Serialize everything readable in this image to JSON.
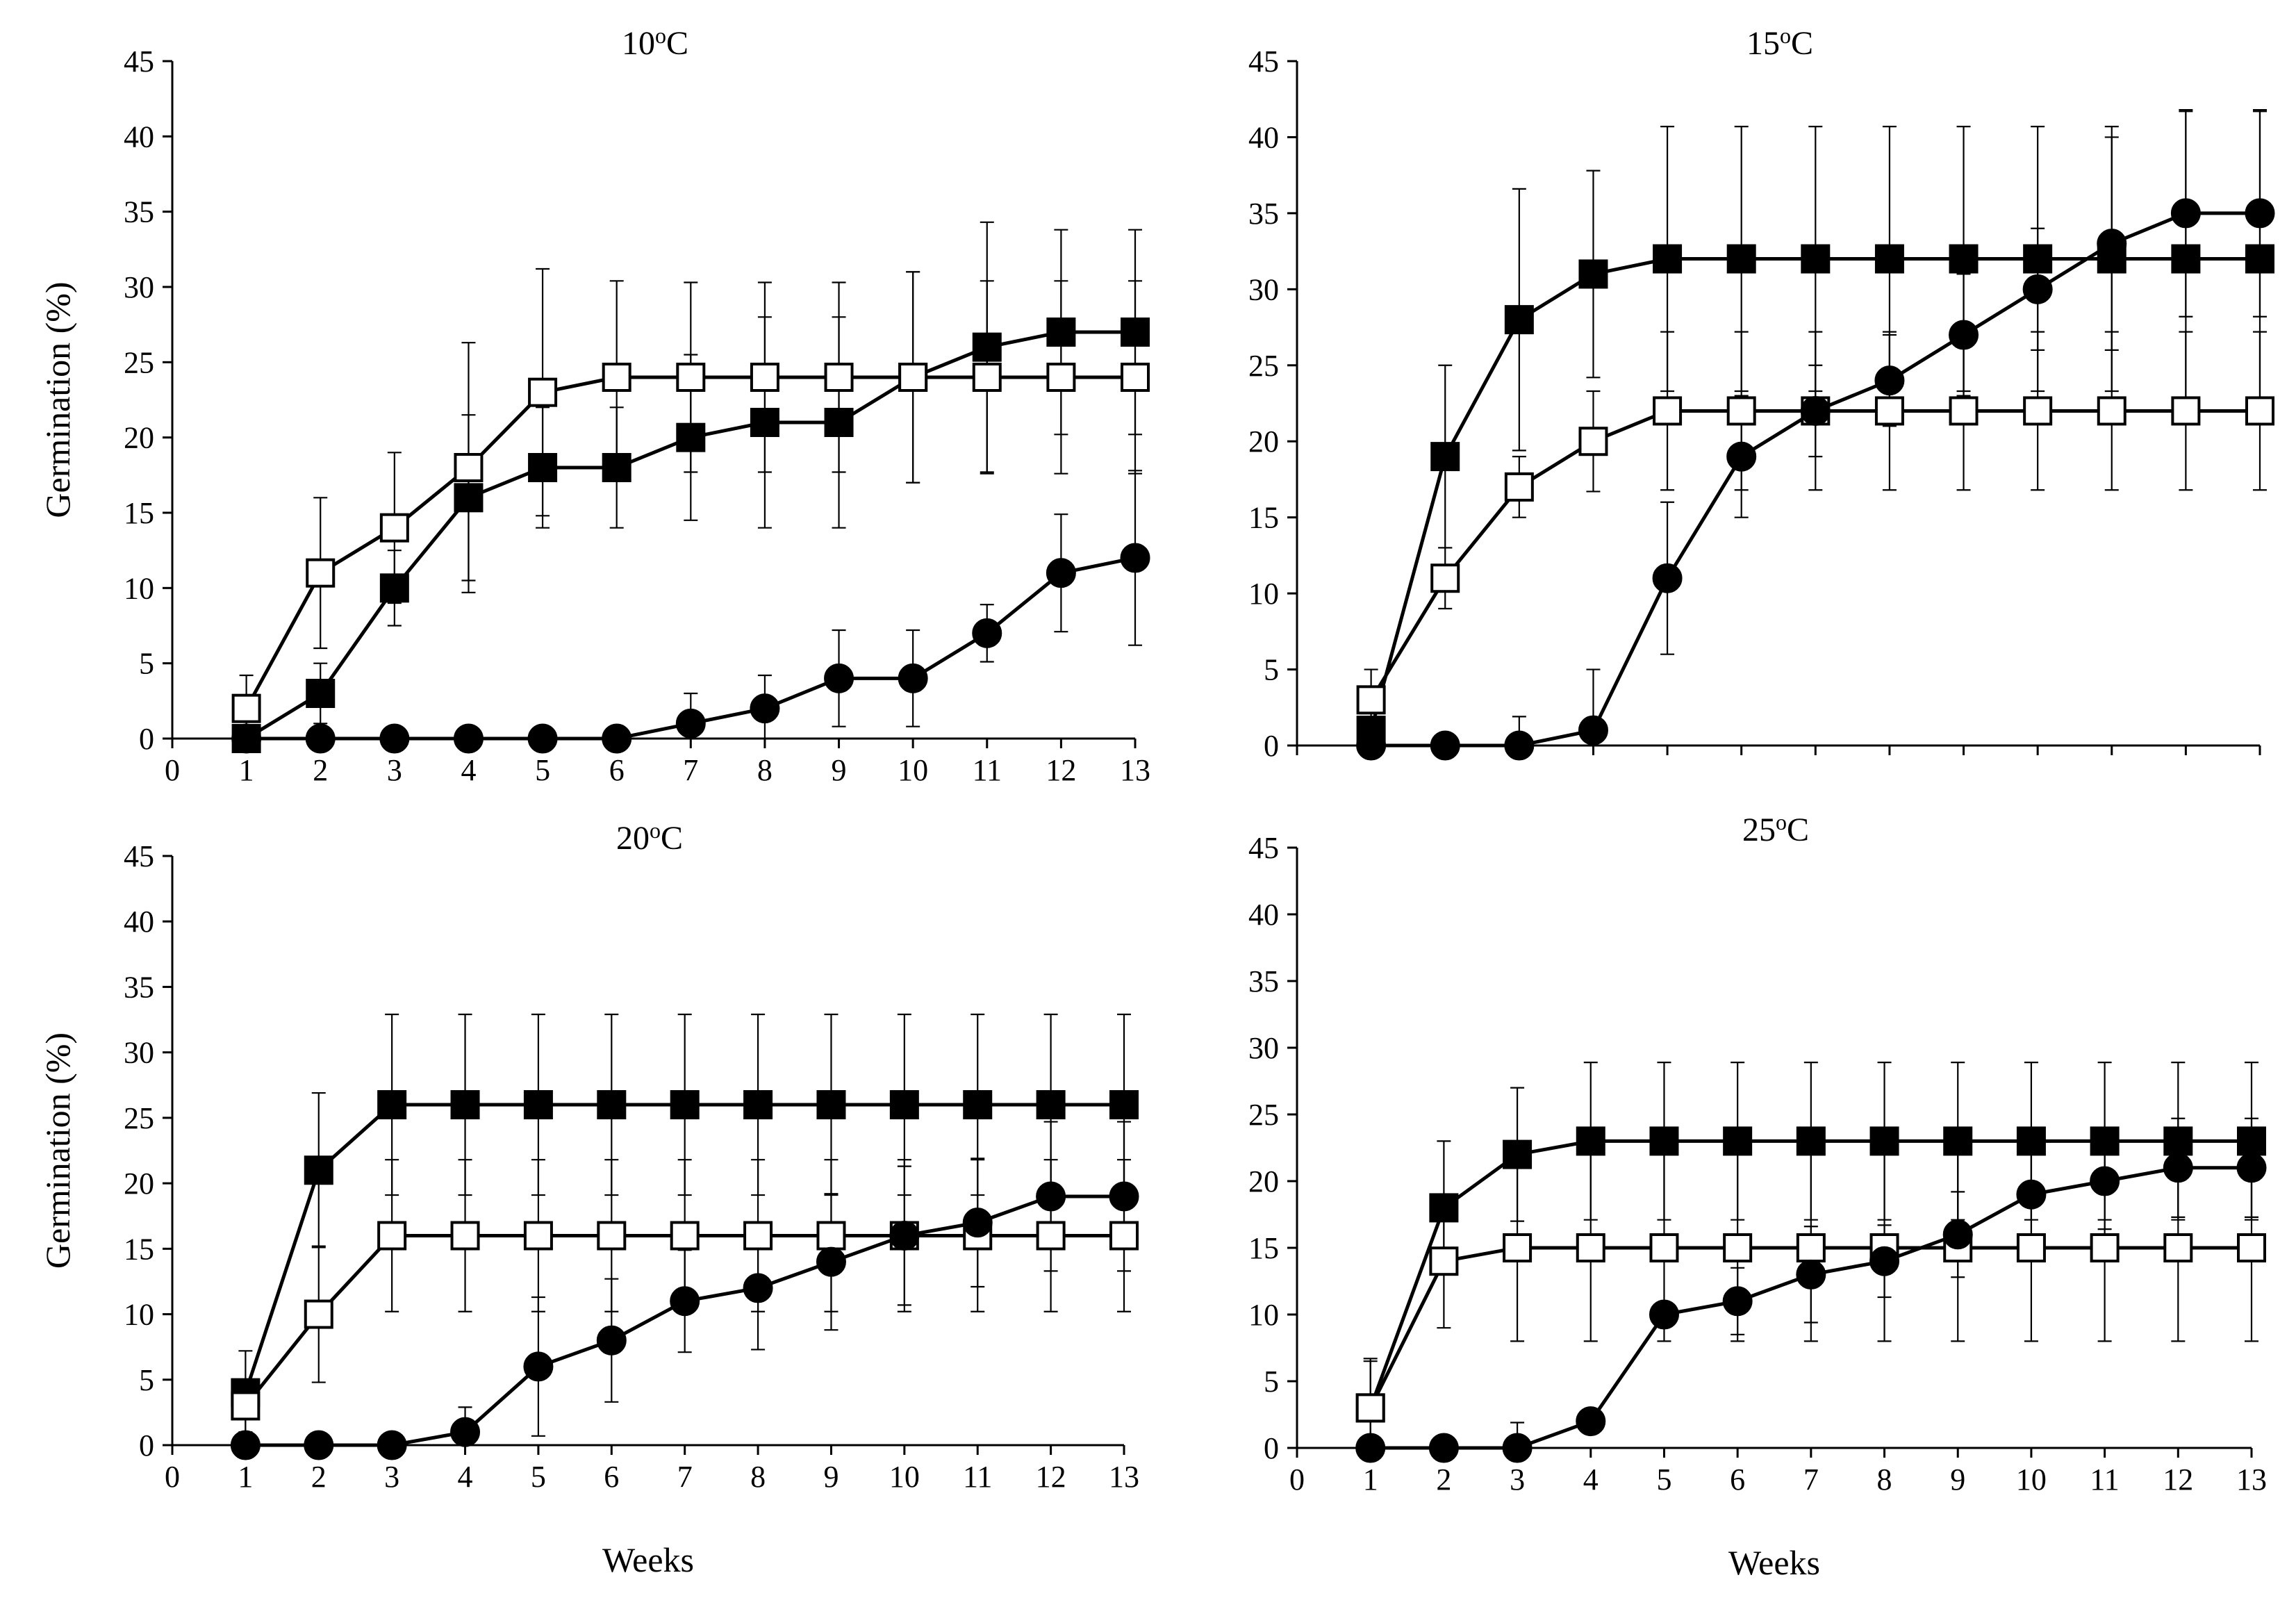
{
  "chart_data": [
    {
      "type": "line",
      "title": "10",
      "title_superscript": "o",
      "title_unit": "C",
      "xlabel": "",
      "ylabel": "Germination (%)",
      "xlim": [
        0,
        13
      ],
      "ylim": [
        0,
        45
      ],
      "x_ticks": [
        0,
        1,
        2,
        3,
        4,
        5,
        6,
        7,
        8,
        9,
        10,
        11,
        12,
        13
      ],
      "y_ticks": [
        0,
        5,
        10,
        15,
        20,
        25,
        30,
        35,
        40,
        45
      ],
      "x": [
        1,
        2,
        3,
        4,
        5,
        6,
        7,
        8,
        9,
        10,
        11,
        12,
        13
      ],
      "series": [
        {
          "name": "filled-square",
          "marker": "square",
          "fill": "#000000",
          "values": [
            0,
            3,
            10,
            16,
            18,
            18,
            20,
            21,
            21,
            24,
            26,
            27,
            27
          ],
          "errors": [
            0,
            2,
            2.5,
            5.5,
            4,
            4,
            5.5,
            7,
            7,
            7,
            8.3,
            6.8,
            6.8
          ]
        },
        {
          "name": "open-square",
          "marker": "square",
          "fill": "#ffffff",
          "values": [
            2,
            11,
            14,
            18,
            23,
            24,
            24,
            24,
            24,
            24,
            24,
            24,
            24
          ],
          "errors": [
            2.2,
            5,
            5,
            8.3,
            8.2,
            6.4,
            6.3,
            6.3,
            6.3,
            7,
            6.4,
            6.4,
            6.4
          ]
        },
        {
          "name": "filled-circle",
          "marker": "circle",
          "fill": "#000000",
          "values": [
            0,
            0,
            0,
            0,
            0,
            0,
            1,
            2,
            4,
            4,
            7,
            11,
            12
          ],
          "errors": [
            0,
            0,
            0,
            0,
            0,
            0,
            2,
            2.2,
            3.2,
            3.2,
            1.9,
            3.9,
            5.8
          ]
        }
      ]
    },
    {
      "type": "line",
      "title": "15",
      "title_superscript": "o",
      "title_unit": "C",
      "xlabel": "",
      "ylabel": "",
      "xlim": [
        0,
        13
      ],
      "ylim": [
        0,
        45
      ],
      "x_ticks": [
        0,
        1,
        2,
        3,
        4,
        5,
        6,
        7,
        8,
        9,
        10,
        11,
        12,
        13
      ],
      "y_ticks": [
        0,
        5,
        10,
        15,
        20,
        25,
        30,
        35,
        40,
        45
      ],
      "show_x_labels": false,
      "x": [
        1,
        2,
        3,
        4,
        5,
        6,
        7,
        8,
        9,
        10,
        11,
        12,
        13
      ],
      "series": [
        {
          "name": "filled-square",
          "marker": "square",
          "fill": "#000000",
          "values": [
            1,
            19,
            28,
            31,
            32,
            32,
            32,
            32,
            32,
            32,
            32,
            32,
            32
          ],
          "errors": [
            0,
            6,
            8.6,
            6.8,
            8.7,
            8.7,
            8.7,
            8.7,
            8.7,
            8.7,
            8.7,
            9.7,
            9.7
          ]
        },
        {
          "name": "open-square",
          "marker": "square",
          "fill": "#ffffff",
          "values": [
            3,
            11,
            17,
            20,
            22,
            22,
            22,
            22,
            22,
            22,
            22,
            22,
            22
          ],
          "errors": [
            2,
            2,
            2,
            3.3,
            5.2,
            5.2,
            5.2,
            5.2,
            5.2,
            5.2,
            5.2,
            5.2,
            5.2
          ]
        },
        {
          "name": "filled-circle",
          "marker": "circle",
          "fill": "#000000",
          "values": [
            0,
            0,
            0,
            1,
            11,
            19,
            22,
            24,
            27,
            30,
            33,
            35,
            35
          ],
          "errors": [
            0,
            0,
            1.9,
            4,
            5,
            4,
            3,
            3,
            4,
            4,
            7,
            6.8,
            6.8
          ]
        }
      ]
    },
    {
      "type": "line",
      "title": "20",
      "title_superscript": "o",
      "title_unit": "C",
      "xlabel": "Weeks",
      "ylabel": "Germination (%)",
      "xlim": [
        0,
        13
      ],
      "ylim": [
        0,
        45
      ],
      "x_ticks": [
        0,
        1,
        2,
        3,
        4,
        5,
        6,
        7,
        8,
        9,
        10,
        11,
        12,
        13
      ],
      "y_ticks": [
        0,
        5,
        10,
        15,
        20,
        25,
        30,
        35,
        40,
        45
      ],
      "x": [
        1,
        2,
        3,
        4,
        5,
        6,
        7,
        8,
        9,
        10,
        11,
        12,
        13
      ],
      "series": [
        {
          "name": "filled-square",
          "marker": "square",
          "fill": "#000000",
          "values": [
            4,
            21,
            26,
            26,
            26,
            26,
            26,
            26,
            26,
            26,
            26,
            26,
            26
          ],
          "errors": [
            3.2,
            5.9,
            6.9,
            6.9,
            6.9,
            6.9,
            6.9,
            6.9,
            6.9,
            6.9,
            6.9,
            6.9,
            6.9
          ]
        },
        {
          "name": "open-square",
          "marker": "square",
          "fill": "#ffffff",
          "values": [
            3,
            10,
            16,
            16,
            16,
            16,
            16,
            16,
            16,
            16,
            16,
            16,
            16
          ],
          "errors": [
            2,
            5.2,
            5.8,
            5.8,
            5.8,
            5.8,
            5.8,
            5.8,
            5.8,
            5.8,
            5.8,
            5.8,
            5.8
          ]
        },
        {
          "name": "filled-circle",
          "marker": "circle",
          "fill": "#000000",
          "values": [
            0,
            0,
            0,
            1,
            6,
            8,
            11,
            12,
            14,
            16,
            17,
            19,
            19
          ],
          "errors": [
            0,
            0,
            0,
            1.9,
            5.3,
            4.7,
            3.9,
            4.7,
            5.2,
            5.3,
            4.9,
            5.7,
            5.7
          ]
        }
      ]
    },
    {
      "type": "line",
      "title": "25",
      "title_superscript": "o",
      "title_unit": "C",
      "xlabel": "Weeks",
      "ylabel": "",
      "xlim": [
        0,
        13
      ],
      "ylim": [
        0,
        45
      ],
      "x_ticks": [
        0,
        1,
        2,
        3,
        4,
        5,
        6,
        7,
        8,
        9,
        10,
        11,
        12,
        13
      ],
      "y_ticks": [
        0,
        5,
        10,
        15,
        20,
        25,
        30,
        35,
        40,
        45
      ],
      "x": [
        1,
        2,
        3,
        4,
        5,
        6,
        7,
        8,
        9,
        10,
        11,
        12,
        13
      ],
      "series": [
        {
          "name": "filled-square",
          "marker": "square",
          "fill": "#000000",
          "values": [
            3,
            18,
            22,
            23,
            23,
            23,
            23,
            23,
            23,
            23,
            23,
            23,
            23
          ],
          "errors": [
            3.7,
            5,
            5,
            5.9,
            5.9,
            5.9,
            5.9,
            5.9,
            5.9,
            5.9,
            5.9,
            5.9,
            5.9
          ]
        },
        {
          "name": "open-square",
          "marker": "square",
          "fill": "#ffffff",
          "values": [
            3,
            14,
            15,
            15,
            15,
            15,
            15,
            15,
            15,
            15,
            15,
            15,
            15
          ],
          "errors": [
            3.5,
            5,
            7,
            7,
            7,
            7,
            7,
            7,
            7,
            7,
            7,
            7,
            7
          ]
        },
        {
          "name": "filled-circle",
          "marker": "circle",
          "fill": "#000000",
          "values": [
            0,
            0,
            0,
            2,
            10,
            11,
            13,
            14,
            16,
            19,
            20,
            21,
            21
          ],
          "errors": [
            0,
            0,
            1.9,
            0,
            0,
            2.5,
            3.6,
            2.7,
            3.2,
            3.9,
            3.6,
            3.7,
            3.7
          ]
        }
      ]
    }
  ]
}
